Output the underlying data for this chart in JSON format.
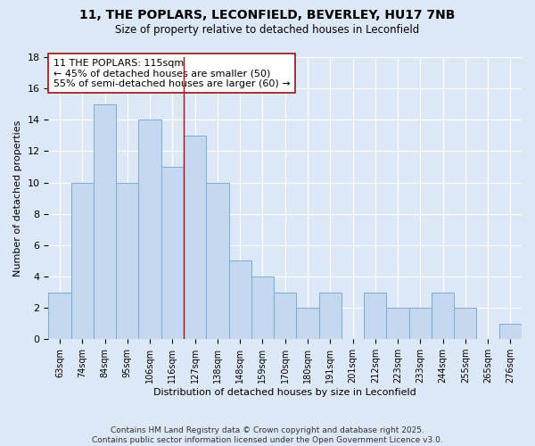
{
  "title_line1": "11, THE POPLARS, LECONFIELD, BEVERLEY, HU17 7NB",
  "title_line2": "Size of property relative to detached houses in Leconfield",
  "xlabel": "Distribution of detached houses by size in Leconfield",
  "ylabel": "Number of detached properties",
  "categories": [
    "63sqm",
    "74sqm",
    "84sqm",
    "95sqm",
    "106sqm",
    "116sqm",
    "127sqm",
    "138sqm",
    "148sqm",
    "159sqm",
    "170sqm",
    "180sqm",
    "191sqm",
    "201sqm",
    "212sqm",
    "223sqm",
    "233sqm",
    "244sqm",
    "255sqm",
    "265sqm",
    "276sqm"
  ],
  "values": [
    3,
    10,
    15,
    10,
    14,
    11,
    13,
    10,
    5,
    4,
    3,
    2,
    3,
    0,
    3,
    2,
    2,
    3,
    2,
    0,
    1
  ],
  "bar_color": "#c5d8ef",
  "bar_edge_color": "#7aadd4",
  "background_color": "#dce8f5",
  "grid_color": "#ffffff",
  "vline_x_idx": 5,
  "vline_color": "#9b1010",
  "annotation_text": "11 THE POPLARS: 115sqm\n← 45% of detached houses are smaller (50)\n55% of semi-detached houses are larger (60) →",
  "annotation_box_color": "#ffffff",
  "annotation_box_edge": "#9b1010",
  "ylim": [
    0,
    18
  ],
  "yticks": [
    0,
    2,
    4,
    6,
    8,
    10,
    12,
    14,
    16,
    18
  ],
  "footer": "Contains HM Land Registry data © Crown copyright and database right 2025.\nContains public sector information licensed under the Open Government Licence v3.0."
}
